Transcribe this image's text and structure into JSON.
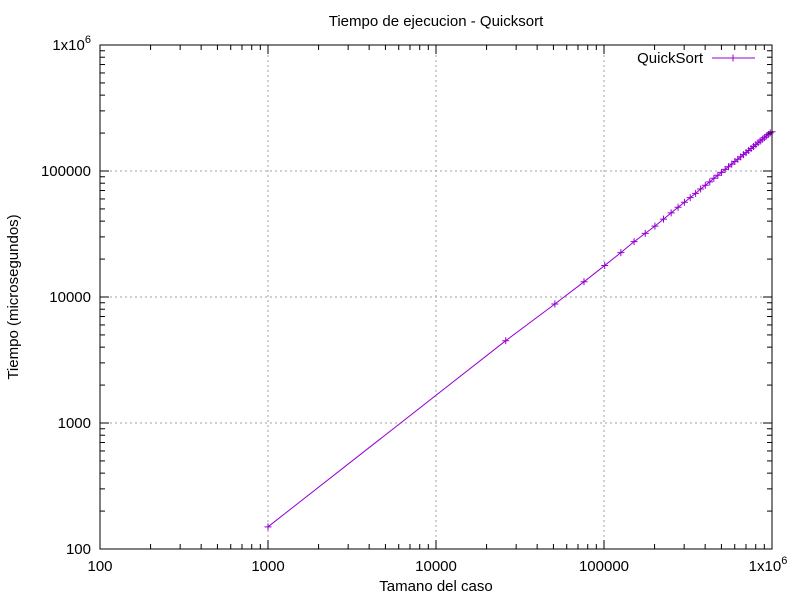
{
  "chart_data": {
    "type": "line",
    "title": "Tiempo de ejecucion - Quicksort",
    "xlabel": "Tamano del caso",
    "ylabel": "Tiempo (microsegundos)",
    "xscale": "log",
    "yscale": "log",
    "xlim": [
      100,
      1000000
    ],
    "ylim": [
      100,
      1000000
    ],
    "grid": true,
    "legend_position": "top-right",
    "x_ticks": [
      {
        "value": 100,
        "base": "100",
        "sup": ""
      },
      {
        "value": 1000,
        "base": "1000",
        "sup": ""
      },
      {
        "value": 10000,
        "base": "10000",
        "sup": ""
      },
      {
        "value": 100000,
        "base": "100000",
        "sup": ""
      },
      {
        "value": 1000000,
        "base": "1x10",
        "sup": "6"
      }
    ],
    "y_ticks": [
      {
        "value": 100,
        "base": "100",
        "sup": ""
      },
      {
        "value": 1000,
        "base": "1000",
        "sup": ""
      },
      {
        "value": 10000,
        "base": "10000",
        "sup": ""
      },
      {
        "value": 100000,
        "base": "100000",
        "sup": ""
      },
      {
        "value": 1000000,
        "base": "1x10",
        "sup": "6"
      }
    ],
    "series": [
      {
        "name": "QuickSort",
        "color": "#9400d3",
        "marker": "plus",
        "x": [
          1000,
          26000,
          51000,
          76000,
          101000,
          126000,
          151000,
          176000,
          201000,
          226000,
          251000,
          276000,
          301000,
          326000,
          351000,
          376000,
          401000,
          426000,
          451000,
          476000,
          501000,
          526000,
          551000,
          576000,
          601000,
          626000,
          651000,
          676000,
          701000,
          726000,
          751000,
          776000,
          801000,
          826000,
          851000,
          876000,
          901000,
          926000,
          951000,
          976000,
          1000000
        ],
        "y": [
          150,
          4500,
          8800,
          13200,
          17800,
          22500,
          27500,
          32000,
          36500,
          41500,
          46500,
          51500,
          56500,
          61500,
          66500,
          72000,
          77000,
          82000,
          87500,
          92500,
          97500,
          103000,
          108000,
          113500,
          119000,
          124000,
          129500,
          135000,
          140000,
          145500,
          151000,
          156500,
          162000,
          167500,
          173000,
          178500,
          184000,
          189500,
          195000,
          200500,
          205000
        ]
      }
    ]
  }
}
